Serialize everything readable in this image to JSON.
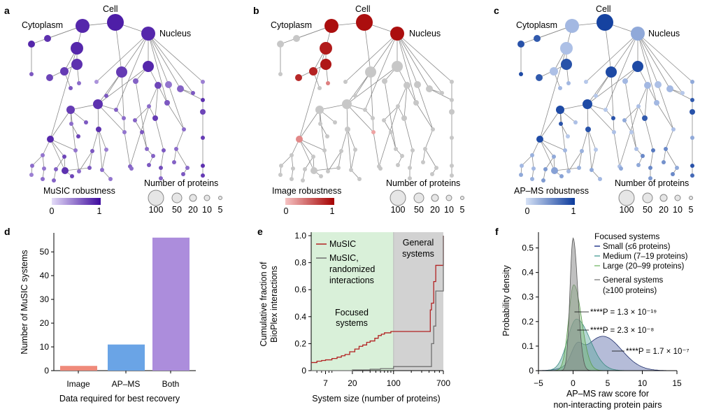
{
  "colors": {
    "a_low": "#d8cdf5",
    "a_high": "#3e0a9e",
    "b_low": "#f3a6a6",
    "b_high": "#a50000",
    "c_low": "#c9d8f3",
    "c_high": "#0b3a9c",
    "gray_node": "#c7c7c7",
    "bar_image": "#ef8a7a",
    "bar_apms": "#6aa4e6",
    "bar_both": "#ac8ddc",
    "musis_line": "#b22222",
    "random_line": "#707070",
    "focused_bg": "#d9f0d9",
    "general_bg": "#d2d2d2",
    "dens_small": "#2b3f8f",
    "dens_medium": "#5ea8a0",
    "dens_large": "#86c07a",
    "dens_general": "#8c8c8c"
  },
  "panels": {
    "a": {
      "letter": "a",
      "cell": "Cell",
      "cytoplasm": "Cytoplasm",
      "nucleus": "Nucleus",
      "legend_title": "MuSIC robustness",
      "scale_min": "0",
      "scale_max": "1"
    },
    "b": {
      "letter": "b",
      "cell": "Cell",
      "cytoplasm": "Cytoplasm",
      "nucleus": "Nucleus",
      "legend_title": "Image robustness",
      "scale_min": "0",
      "scale_max": "1"
    },
    "c": {
      "letter": "c",
      "cell": "Cell",
      "cytoplasm": "Cytoplasm",
      "nucleus": "Nucleus",
      "legend_title": "AP–MS robustness",
      "scale_min": "0",
      "scale_max": "1"
    }
  },
  "size_legend": {
    "title": "Number of proteins",
    "labels": [
      "100",
      "50",
      "20",
      "10",
      "5"
    ]
  },
  "chart_data": [
    {
      "panel": "d",
      "type": "bar",
      "categories": [
        "Image",
        "AP–MS",
        "Both"
      ],
      "values": [
        2,
        11,
        56
      ],
      "ylabel": "Number of MuSIC systems",
      "xlabel": "Data required for best recovery",
      "ylim": [
        0,
        58
      ],
      "yticks": [
        0,
        10,
        20,
        30,
        40,
        50
      ]
    },
    {
      "panel": "e",
      "type": "line",
      "xscale": "log",
      "xlim": [
        4,
        700
      ],
      "ylim": [
        0,
        1.0
      ],
      "xticks": [
        7,
        20,
        100,
        700
      ],
      "yticks": [
        "0",
        "0.2",
        "0.4",
        "0.6",
        "0.8",
        "1.0"
      ],
      "xlabel": "System size (number of proteins)",
      "ylabel_lines": [
        "Cumulative fraction of",
        "BioPlex interactions"
      ],
      "region_focused": [
        "Focused",
        "systems"
      ],
      "region_general": [
        "General",
        "systems"
      ],
      "series": [
        {
          "name": "MuSIC",
          "legend_lines": [
            "MuSIC"
          ],
          "x": [
            4,
            5,
            6,
            7,
            9,
            11,
            13,
            15,
            18,
            22,
            26,
            30,
            35,
            40,
            48,
            55,
            62,
            70,
            80,
            90,
            100,
            420,
            440,
            480,
            520,
            700
          ],
          "y": [
            0.06,
            0.07,
            0.075,
            0.08,
            0.09,
            0.1,
            0.11,
            0.12,
            0.14,
            0.16,
            0.18,
            0.19,
            0.21,
            0.22,
            0.24,
            0.26,
            0.27,
            0.28,
            0.28,
            0.29,
            0.29,
            0.45,
            0.5,
            0.66,
            0.78,
            1.0
          ]
        },
        {
          "name": "MuSIC, randomized interactions",
          "legend_lines": [
            "MuSIC,",
            "randomized",
            "interactions"
          ],
          "x": [
            4,
            10,
            20,
            40,
            60,
            100,
            420,
            440,
            480,
            520,
            700
          ],
          "y": [
            0.0,
            0.0,
            0.005,
            0.01,
            0.015,
            0.03,
            0.03,
            0.2,
            0.33,
            0.59,
            1.0
          ]
        }
      ]
    },
    {
      "panel": "f",
      "type": "area",
      "xlim": [
        -5,
        15
      ],
      "ylim": [
        0,
        0.55
      ],
      "xticks": [
        -5,
        0,
        5,
        10,
        15
      ],
      "yticks": [
        "0",
        "0.1",
        "0.2",
        "0.3",
        "0.4",
        "0.5"
      ],
      "xlabel_lines": [
        "AP–MS raw score for",
        "non-interacting protein pairs"
      ],
      "ylabel": "Probability density",
      "legend_title": "Focused systems",
      "series": [
        {
          "name": "Small (≤6 proteins)",
          "legend_lines": [
            "Small (≤6 proteins)"
          ],
          "mu": 4.3,
          "sigma": 2.7,
          "peak": 0.14
        },
        {
          "name": "Medium (7–19 proteins)",
          "legend_lines": [
            "Medium (7–19 proteins)"
          ],
          "mu": 0.5,
          "sigma": 1.3,
          "peak": 0.21
        },
        {
          "name": "Large (20–99 proteins)",
          "legend_lines": [
            "Large (20–99 proteins)"
          ],
          "mu": 0.1,
          "sigma": 0.75,
          "peak": 0.35
        },
        {
          "name": "General systems (≥100 proteins)",
          "legend_lines": [
            "General systems",
            "(≥100 proteins)"
          ],
          "mu": 0.0,
          "sigma": 0.45,
          "peak": 0.54
        }
      ],
      "annotations": [
        {
          "text": "****P = 1.3 × 10⁻¹⁹"
        },
        {
          "text": "****P = 2.3 × 10⁻⁸"
        },
        {
          "text": "****P = 1.7 × 10⁻⁷"
        }
      ]
    }
  ]
}
